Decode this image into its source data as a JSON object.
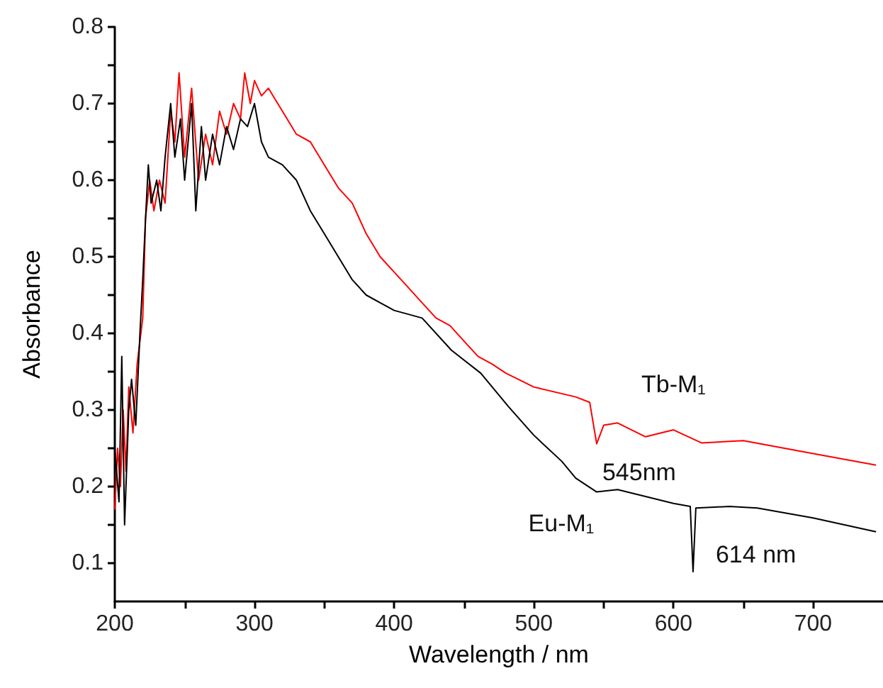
{
  "chart_data": {
    "type": "line",
    "xlabel": "Wavelength / nm",
    "ylabel": "Absorbance",
    "xlim": [
      200,
      750
    ],
    "ylim": [
      0.05,
      0.8
    ],
    "xticks": [
      200,
      {
        "value": 250,
        "label": null
      },
      300,
      {
        "value": 350,
        "label": null
      },
      400,
      {
        "value": 450,
        "label": null
      },
      500,
      {
        "value": 550,
        "label": null
      },
      600,
      {
        "value": 650,
        "label": null
      },
      700
    ],
    "yticks": [
      0.1,
      {
        "value": 0.15,
        "label": null
      },
      0.2,
      {
        "value": 0.25,
        "label": null
      },
      0.3,
      {
        "value": 0.35,
        "label": null
      },
      0.4,
      {
        "value": 0.45,
        "label": null
      },
      0.5,
      {
        "value": 0.55,
        "label": null
      },
      0.6,
      {
        "value": 0.65,
        "label": null
      },
      0.7,
      {
        "value": 0.75,
        "label": null
      },
      0.8
    ],
    "grid": false,
    "legend": false,
    "marker": "none",
    "line_style": "solid",
    "series": [
      {
        "name": "Tb-M₁",
        "color": "#ff0000",
        "x": [
          200,
          202,
          204,
          206,
          208,
          210,
          213,
          216,
          220,
          222,
          225,
          228,
          232,
          236,
          240,
          243,
          246,
          250,
          255,
          260,
          265,
          270,
          275,
          280,
          285,
          290,
          293,
          297,
          300,
          305,
          310,
          320,
          330,
          340,
          350,
          360,
          370,
          380,
          390,
          400,
          410,
          420,
          430,
          440,
          450,
          460,
          470,
          480,
          500,
          530,
          540,
          545,
          550,
          560,
          580,
          600,
          620,
          650,
          700,
          745
        ],
        "values": [
          0.17,
          0.25,
          0.2,
          0.3,
          0.22,
          0.33,
          0.27,
          0.36,
          0.42,
          0.55,
          0.6,
          0.56,
          0.6,
          0.57,
          0.69,
          0.65,
          0.74,
          0.63,
          0.72,
          0.6,
          0.66,
          0.62,
          0.69,
          0.66,
          0.7,
          0.68,
          0.74,
          0.7,
          0.73,
          0.71,
          0.72,
          0.69,
          0.66,
          0.65,
          0.62,
          0.59,
          0.57,
          0.53,
          0.5,
          0.48,
          0.46,
          0.44,
          0.42,
          0.41,
          0.39,
          0.37,
          0.36,
          0.348,
          0.33,
          0.317,
          0.31,
          0.256,
          0.28,
          0.283,
          0.265,
          0.274,
          0.257,
          0.26,
          0.243,
          0.228
        ]
      },
      {
        "name": "Eu-M₁",
        "color": "#000000",
        "x": [
          200,
          203,
          205,
          207,
          210,
          212,
          215,
          218,
          220,
          222,
          224,
          226,
          230,
          233,
          236,
          240,
          243,
          247,
          250,
          255,
          258,
          262,
          265,
          270,
          275,
          280,
          285,
          290,
          295,
          300,
          305,
          310,
          320,
          330,
          340,
          350,
          360,
          370,
          380,
          390,
          400,
          420,
          441,
          462,
          482,
          500,
          520,
          530,
          545,
          560,
          580,
          600,
          612,
          614,
          616,
          640,
          660,
          700,
          745
        ],
        "values": [
          0.25,
          0.18,
          0.37,
          0.15,
          0.3,
          0.34,
          0.28,
          0.4,
          0.47,
          0.55,
          0.62,
          0.57,
          0.6,
          0.56,
          0.63,
          0.7,
          0.63,
          0.68,
          0.6,
          0.7,
          0.56,
          0.67,
          0.6,
          0.66,
          0.62,
          0.67,
          0.64,
          0.68,
          0.67,
          0.7,
          0.65,
          0.63,
          0.62,
          0.6,
          0.56,
          0.53,
          0.5,
          0.47,
          0.45,
          0.44,
          0.43,
          0.42,
          0.378,
          0.348,
          0.304,
          0.267,
          0.233,
          0.211,
          0.193,
          0.196,
          0.187,
          0.178,
          0.174,
          0.089,
          0.172,
          0.174,
          0.172,
          0.159,
          0.141
        ]
      }
    ],
    "annotations": [
      {
        "text": "545nm",
        "x": 545,
        "y": 0.256
      },
      {
        "text": "614 nm",
        "x": 614,
        "y": 0.089
      }
    ]
  }
}
